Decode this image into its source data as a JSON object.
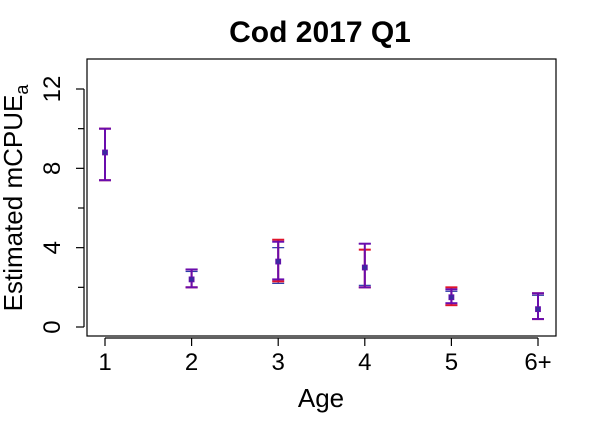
{
  "chart_data": {
    "type": "scatter",
    "title": "Cod 2017 Q1",
    "xlabel": "Age",
    "ylabel": "Estimated mCPUE",
    "ylabel_subscript": "a",
    "categories": [
      "1",
      "2",
      "3",
      "4",
      "5",
      "6+"
    ],
    "ylim": [
      0,
      14
    ],
    "yticks": [
      0,
      4,
      8,
      12
    ],
    "grid": false,
    "colors": {
      "point": "#3b2aa0",
      "lower_error": "#e0142b",
      "upper_error": "#6a0dad",
      "blue_error": "#2a3aa8",
      "frame": "#000000"
    },
    "series": [
      {
        "values": [
          8.8,
          2.4,
          3.3,
          3.0,
          1.5,
          0.9
        ],
        "error_bars": [
          {
            "red": [
              7.4,
              10.0
            ],
            "purple": [
              7.4,
              10.0
            ],
            "blue": [
              7.4,
              10.0
            ]
          },
          {
            "red": [
              2.0,
              2.9
            ],
            "purple": [
              2.0,
              2.9
            ],
            "blue": [
              2.0,
              2.8
            ]
          },
          {
            "red": [
              2.3,
              4.4
            ],
            "purple": [
              2.4,
              4.3
            ],
            "blue": [
              2.2,
              4.0
            ]
          },
          {
            "red": [
              2.0,
              3.9
            ],
            "purple": [
              2.0,
              4.2
            ],
            "blue": [
              2.1,
              4.2
            ]
          },
          {
            "red": [
              1.1,
              2.0
            ],
            "purple": [
              1.2,
              1.9
            ],
            "blue": [
              1.1,
              1.8
            ]
          },
          {
            "red": [
              0.4,
              1.7
            ],
            "purple": [
              0.4,
              1.7
            ],
            "blue": [
              0.4,
              1.6
            ]
          }
        ]
      }
    ]
  }
}
